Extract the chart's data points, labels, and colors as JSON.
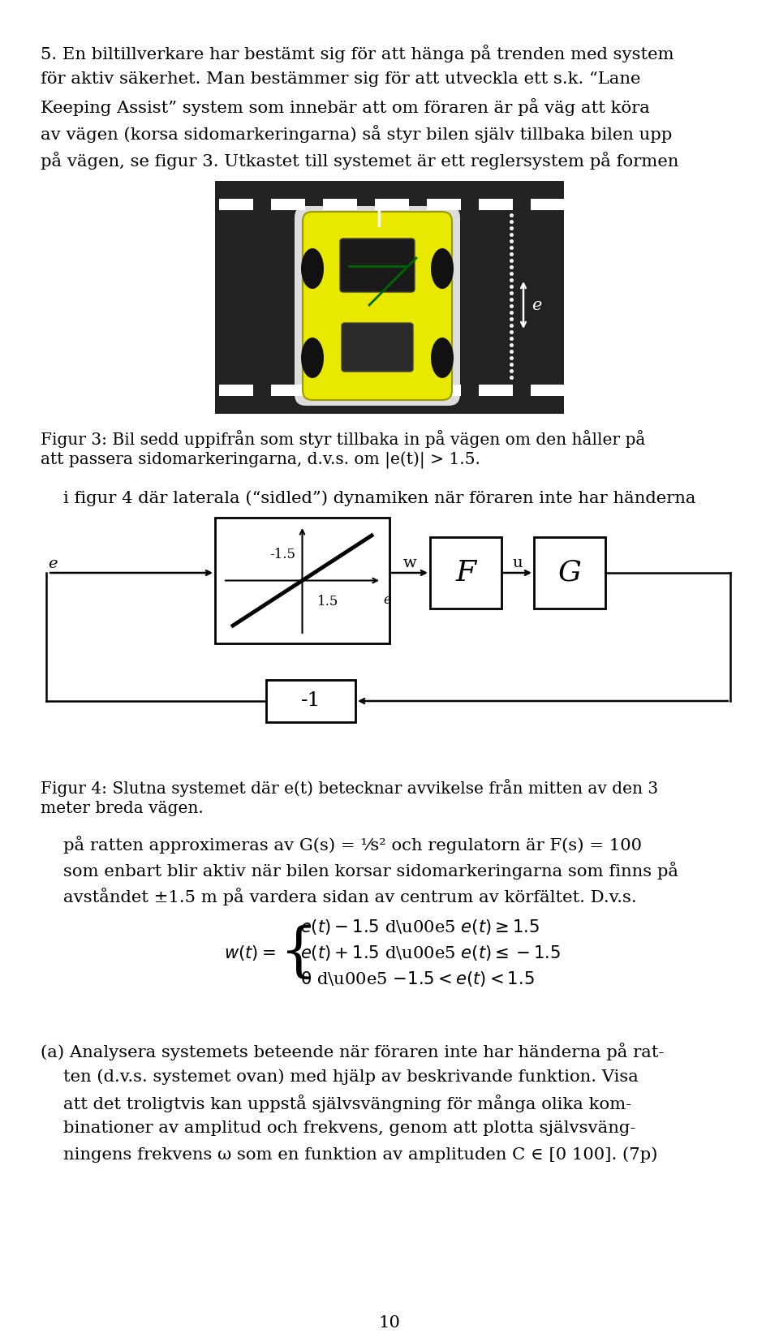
{
  "page_title_lines": [
    "5. En biltillverkare har bestämt sig för att hänga på trenden med system",
    "för aktiv säkerhet. Man bestämmer sig för att utveckla ett s.k. “Lane",
    "Keeping Assist” system som innebär att om föraren är på väg att köra",
    "av vägen (korsa sidomarkeringarna) så styr bilen själv tillbaka bilen upp",
    "på vägen, se figur 3. Utkastet till systemet är ett reglersystem på formen"
  ],
  "fig3_cap1": "Figur 3: Bil sedd uppifrån som styr tillbaka in på vägen om den håller på",
  "fig3_cap2": "att passera sidomarkeringarna, d.v.s. om |e(t)| > 1.5.",
  "text_between": "i figur 4 där laterala (“sidled”) dynamiken när föraren inte har händerna",
  "fig4_cap1": "Figur 4: Slutna systemet där e(t) betecknar avvikelse från mitten av den 3",
  "fig4_cap2": "meter breda vägen.",
  "bt1": "på ratten approximeras av G(s) = ¹⁄s² och regulatorn är F(s) = 100",
  "bt2": "som enbart blir aktiv när bilen korsar sidomarkeringarna som finns på",
  "bt3": "avståndet ±1.5 m på vardera sidan av centrum av körfältet. D.v.s.",
  "pa1": "(a) Analysera systemets beteende när föraren inte har händerna på rat-",
  "pa2": "ten (d.v.s. systemet ovan) med hjälp av beskrivande funktion. Visa",
  "pa3": "att det troligtvis kan uppstå självsvängning för många olika kom-",
  "pa4": "binationer av amplitud och frekvens, genom att plotta självsväng-",
  "pa5": "ningens frekvens ω som en funktion av amplituden C ∈ [0 100]. (7p)",
  "page_num": "10",
  "bg_color": "#ffffff",
  "text_color": "#000000",
  "road_color": "#222222",
  "car_color": "#e8e800"
}
